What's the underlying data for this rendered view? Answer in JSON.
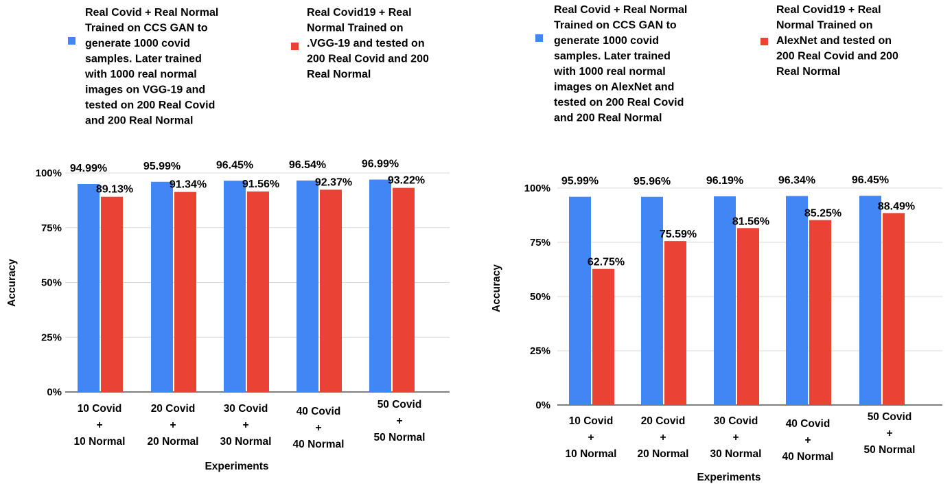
{
  "chart_data": [
    {
      "type": "bar",
      "categories": [
        [
          "10 Covid",
          "+",
          "10 Normal"
        ],
        [
          "20 Covid",
          "+",
          "20 Normal"
        ],
        [
          "30 Covid",
          "+",
          "30 Normal"
        ],
        [
          "40 Covid",
          "+",
          "40 Normal"
        ],
        [
          "50 Covid",
          "+",
          "50 Normal"
        ]
      ],
      "series": [
        {
          "name": [
            "Real Covid + Real Normal",
            "Trained on CCS GAN to",
            "generate 1000 covid",
            "samples. Later trained",
            "with 1000 real normal",
            "images on VGG-19  and",
            "tested on 200 Real Covid",
            "and 200 Real Normal"
          ],
          "values": [
            94.99,
            95.99,
            96.45,
            96.54,
            96.99
          ],
          "labels": [
            "94.99%",
            "95.99%",
            "96.45%",
            "96.54%",
            "96.99%"
          ],
          "color": "#4285f4"
        },
        {
          "name": [
            "Real Covid19 + Real",
            "Normal Trained on",
            ".VGG-19  and tested on",
            "200 Real Covid and 200",
            "Real Normal"
          ],
          "values": [
            89.13,
            91.34,
            91.56,
            92.37,
            93.22
          ],
          "labels": [
            "89.13%",
            "91.34%",
            "91.56%",
            "92.37%",
            "93.22%"
          ],
          "color": "#ea4335"
        }
      ],
      "xlabel": "Experiments",
      "ylabel": "Accuracy",
      "ylim": [
        0,
        100
      ],
      "yticks": [
        "0%",
        "25%",
        "50%",
        "75%",
        "100%"
      ],
      "legend_position": "top",
      "grid": true
    },
    {
      "type": "bar",
      "categories": [
        [
          "10 Covid",
          "+",
          "10 Normal"
        ],
        [
          "20 Covid",
          "+",
          "20 Normal"
        ],
        [
          "30 Covid",
          "+",
          "30 Normal"
        ],
        [
          "40 Covid",
          "+",
          "40 Normal"
        ],
        [
          "50 Covid",
          "+",
          "50 Normal"
        ]
      ],
      "series": [
        {
          "name": [
            "Real Covid + Real Normal",
            "Trained on CCS GAN to",
            "generate 1000 covid",
            "samples. Later trained",
            "with 1000 real normal",
            "images on AlexNet and",
            "tested on 200 Real Covid",
            "and 200 Real Normal"
          ],
          "values": [
            95.99,
            95.96,
            96.19,
            96.34,
            96.45
          ],
          "labels": [
            "95.99%",
            "95.96%",
            "96.19%",
            "96.34%",
            "96.45%"
          ],
          "color": "#4285f4"
        },
        {
          "name": [
            "Real Covid19 + Real",
            "Normal Trained on",
            "AlexNet and tested on",
            "200 Real Covid and 200",
            "Real Normal"
          ],
          "values": [
            62.75,
            75.59,
            81.56,
            85.25,
            88.49
          ],
          "labels": [
            "62.75%",
            "75.59%",
            "81.56%",
            "85.25%",
            "88.49%"
          ],
          "color": "#ea4335"
        }
      ],
      "xlabel": "Experiments",
      "ylabel": "Accuracy",
      "ylim": [
        0,
        100
      ],
      "yticks": [
        "0%",
        "25%",
        "50%",
        "75%",
        "100%"
      ],
      "legend_position": "top",
      "grid": true
    }
  ]
}
